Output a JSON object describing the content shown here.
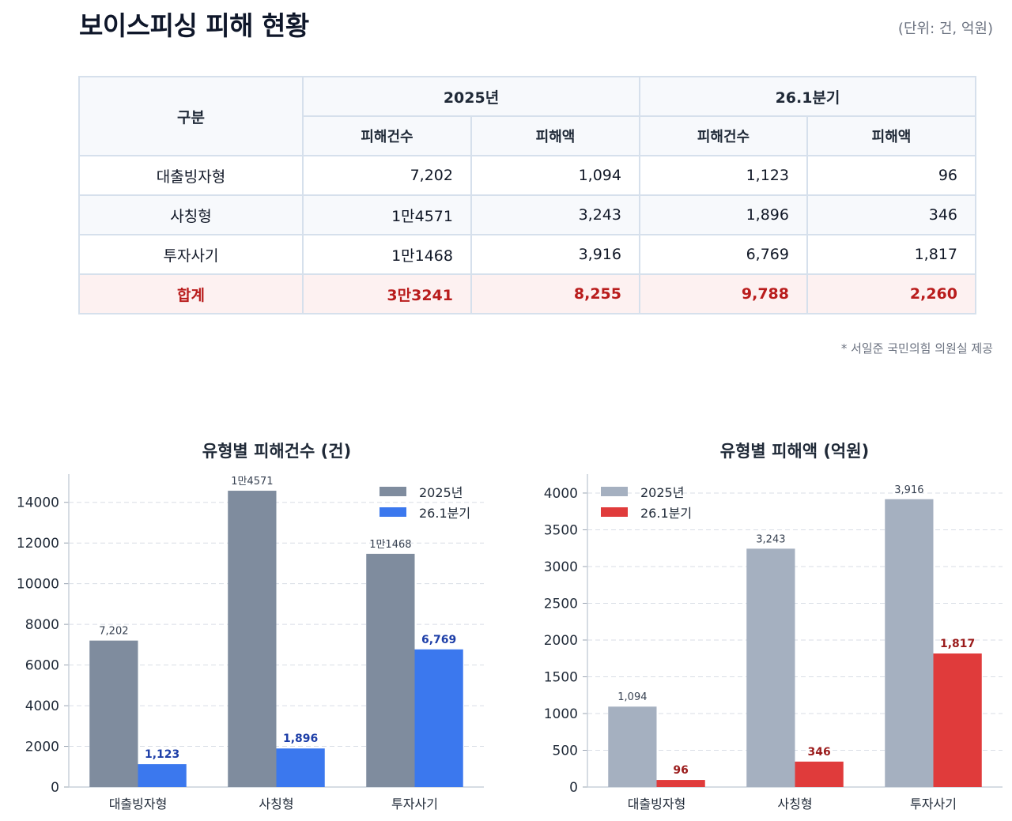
{
  "title": "보이스피싱 피해 현황",
  "unit_note": "(단위: 건, 억원)",
  "source_note": "* 서일준 국민의힘 의원실 제공",
  "table": {
    "col_category": "구분",
    "group_2025": "2025년",
    "group_q1": "26.1분기",
    "sub_count": "피해건수",
    "sub_amount": "피해액",
    "rows": [
      {
        "category": "대출빙자형",
        "c2025": "7,202",
        "a2025": "1,094",
        "cq1": "1,123",
        "aq1": "96"
      },
      {
        "category": "사칭형",
        "c2025": "1만4571",
        "a2025": "3,243",
        "cq1": "1,896",
        "aq1": "346"
      },
      {
        "category": "투자사기",
        "c2025": "1만1468",
        "a2025": "3,916",
        "cq1": "6,769",
        "aq1": "1,817"
      },
      {
        "category": "합계",
        "c2025": "3만3241",
        "a2025": "8,255",
        "cq1": "9,788",
        "aq1": "2,260"
      }
    ]
  },
  "colors": {
    "count_2025": "#7f8c9e",
    "count_q1": "#3b78ee",
    "amount_2025": "#a5b0c0",
    "amount_q1": "#e03b3b",
    "label_q1_count": "#1e3fa8",
    "label_q1_amount": "#9b1c1c",
    "label_2025": "#374151"
  },
  "chart_data": [
    {
      "type": "bar",
      "title": "유형별 피해건수 (건)",
      "categories": [
        "대출빙자형",
        "사칭형",
        "투자사기"
      ],
      "series": [
        {
          "name": "2025년",
          "values": [
            7202,
            14571,
            11468
          ],
          "labels": [
            "7,202",
            "1만4571",
            "1만1468"
          ]
        },
        {
          "name": "26.1분기",
          "values": [
            1123,
            1896,
            6769
          ],
          "labels": [
            "1,123",
            "1,896",
            "6,769"
          ]
        }
      ],
      "ylim": [
        0,
        15000
      ],
      "yticks": [
        0,
        2000,
        4000,
        6000,
        8000,
        10000,
        12000,
        14000
      ],
      "grid": true,
      "legend": "top-right"
    },
    {
      "type": "bar",
      "title": "유형별 피해액 (억원)",
      "categories": [
        "대출빙자형",
        "사칭형",
        "투자사기"
      ],
      "series": [
        {
          "name": "2025년",
          "values": [
            1094,
            3243,
            3916
          ],
          "labels": [
            "1,094",
            "3,243",
            "3,916"
          ]
        },
        {
          "name": "26.1분기",
          "values": [
            96,
            346,
            1817
          ],
          "labels": [
            "96",
            "346",
            "1,817"
          ]
        }
      ],
      "ylim": [
        0,
        4150
      ],
      "yticks": [
        0,
        500,
        1000,
        1500,
        2000,
        2500,
        3000,
        3500,
        4000
      ],
      "grid": true,
      "legend": "top-left"
    }
  ]
}
